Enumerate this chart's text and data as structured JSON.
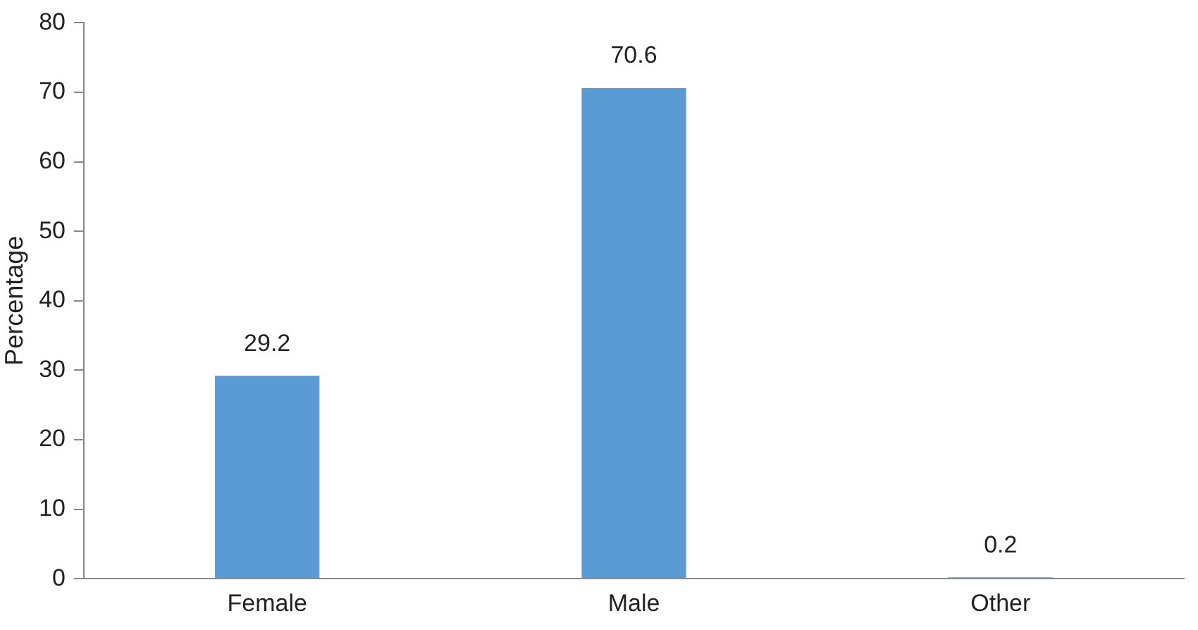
{
  "chart_data": {
    "type": "bar",
    "ylabel": "Percentage",
    "categories": [
      "Female",
      "Male",
      "Other"
    ],
    "values": [
      29.2,
      70.6,
      0.2
    ],
    "color": "#5b9bd5",
    "ylim": [
      0,
      80
    ],
    "yticks": [
      0,
      10,
      20,
      30,
      40,
      50,
      60,
      70,
      80
    ],
    "grid": false,
    "legend": false,
    "data_labels": true
  }
}
